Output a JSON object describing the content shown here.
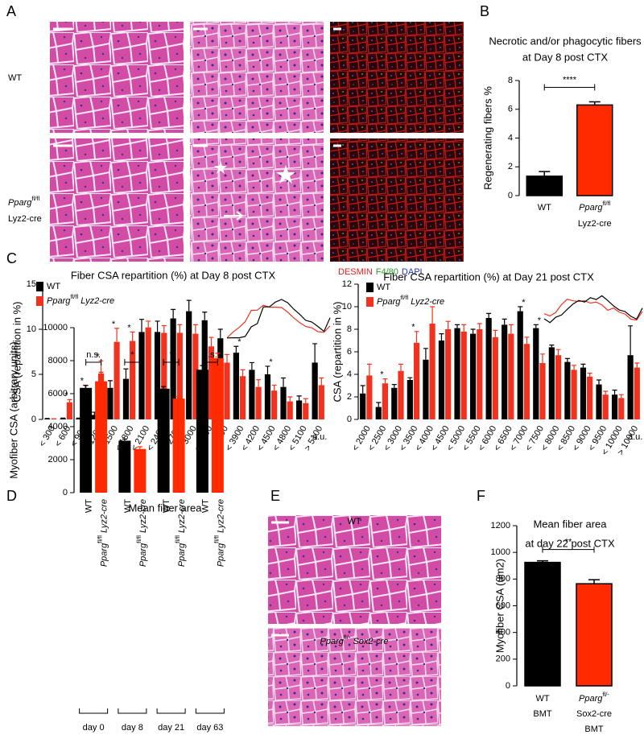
{
  "panel_labels": [
    "A",
    "B",
    "C",
    "D",
    "E",
    "F"
  ],
  "images": {
    "A": {
      "row_labels": [
        [
          "WT"
        ],
        [
          {
            "gene": "Pparg",
            "sup": "fl/fl"
          },
          "Lyz2-cre"
        ]
      ],
      "stain_legend": [
        {
          "text": "DESMIN",
          "color": "#e0201c"
        },
        {
          "text": "F4/80",
          "color": "#2a9a2a"
        },
        {
          "text": "DAPI",
          "color": "#2030c0"
        }
      ]
    },
    "E": {
      "labels": [
        "WT",
        {
          "gene": "Pparg",
          "sup": "fl/-",
          "rest": "Sox2-cre"
        }
      ]
    }
  },
  "chart_data": [
    {
      "type": "bar",
      "title": [
        "Necrotic and/or phagocytic fibers",
        "at Day 8 post CTX"
      ],
      "ylabel": "Regenerating fibers %",
      "categories": [
        [
          "WT"
        ],
        [
          {
            "gene": "Pparg",
            "sup": "fl/fl"
          },
          "Lyz2-cre"
        ]
      ],
      "values": [
        1.35,
        6.3
      ],
      "errors": [
        0.32,
        0.22
      ],
      "colors": [
        "#000000",
        "#ff2a00"
      ],
      "ylim": [
        0,
        8
      ],
      "yticks": [
        0,
        2,
        4,
        6,
        8
      ],
      "significance": "****"
    },
    {
      "type": "grouped_bar",
      "title": [
        "Fiber CSA repartition (%) at Day 8 post CTX"
      ],
      "ylabel": "CSA (repartition in %)",
      "categories": [
        "< 300",
        "< 600",
        "< 900",
        "< 1200",
        "< 1500",
        "< 1800",
        "< 2100",
        "< 2400",
        "< 2700",
        "< 3000",
        "< 3300",
        "< 3600",
        "< 3900",
        "< 4200",
        "< 4500",
        "< 4800",
        "< 5100",
        "> 5100"
      ],
      "x_unit": "a.u.",
      "legend": "upper left",
      "series": [
        {
          "name": "WT",
          "color": "#000000",
          "values": [
            0.05,
            0.1,
            0.1,
            0.5,
            3.5,
            4.5,
            9.7,
            9.7,
            11.2,
            12,
            11,
            9,
            7.4,
            5.5,
            5,
            3.6,
            2.1,
            6.3
          ],
          "errors": [
            0.05,
            0.05,
            0.05,
            0.3,
            0.8,
            1.1,
            1.4,
            1.2,
            1.0,
            1.2,
            0.9,
            1.0,
            0.7,
            0.8,
            0.9,
            1.0,
            0.5,
            2.1
          ]
        },
        {
          "name": {
            "gene": "Pparg",
            "sup": "fl/fl",
            "rest": "Lyz2-cre"
          },
          "color": "#f0321e",
          "values": [
            0.05,
            1.9,
            3.3,
            5.1,
            8.6,
            8.7,
            10.2,
            9.6,
            9.6,
            9.5,
            8.1,
            6.3,
            4.8,
            3.6,
            3.2,
            2,
            1.8,
            3.8
          ],
          "errors": [
            0.02,
            0.3,
            0.5,
            1.4,
            1.5,
            1.0,
            0.7,
            0.8,
            0.9,
            1.0,
            1.0,
            0.9,
            0.7,
            0.8,
            0.6,
            0.5,
            0.5,
            0.8
          ]
        }
      ],
      "stars": [
        null,
        "*",
        "*",
        "*",
        "*",
        "*",
        null,
        null,
        null,
        null,
        null,
        null,
        "*",
        null,
        "*",
        null,
        null,
        null
      ],
      "ylim": [
        0,
        15
      ],
      "yticks": [
        0,
        5,
        10,
        15
      ]
    },
    {
      "type": "grouped_bar",
      "title": [
        "Fiber CSA repartition (%) at Day 21 post CTX"
      ],
      "ylabel": "CSA (repartition in %)",
      "categories": [
        "< 2000",
        "< 2500",
        "< 3000",
        "< 3500",
        "< 4000",
        "< 4500",
        "< 5000",
        "< 5500",
        "< 6000",
        "< 6500",
        "< 7000",
        "< 7500",
        "< 8000",
        "< 8500",
        "< 9000",
        "< 9500",
        "< 10000",
        "> 10000"
      ],
      "x_unit": "a.u.",
      "legend": "upper left",
      "series": [
        {
          "name": "WT",
          "color": "#000000",
          "values": [
            2.3,
            1.1,
            2.8,
            3.5,
            5.3,
            7.0,
            8.1,
            7.6,
            9.0,
            8.4,
            9.6,
            8.1,
            6.4,
            5.1,
            4.6,
            3.1,
            2.2,
            5.7
          ],
          "errors": [
            0.7,
            0.4,
            0.3,
            0.2,
            1.0,
            0.6,
            0.3,
            0.4,
            0.4,
            0.5,
            0.4,
            0.3,
            0.2,
            0.3,
            0.3,
            0.4,
            0.4,
            2.6
          ]
        },
        {
          "name": {
            "gene": "Pparg",
            "sup": "fl/fl",
            "rest": "Lyz2-cre"
          },
          "color": "#f0321e",
          "values": [
            3.9,
            3.2,
            4.3,
            6.8,
            8.5,
            8.0,
            7.8,
            8.0,
            7.3,
            7.6,
            6.7,
            5.0,
            5.7,
            4.4,
            3.8,
            2.2,
            1.9,
            4.6
          ],
          "errors": [
            1.0,
            0.4,
            0.6,
            1.0,
            1.5,
            0.7,
            0.6,
            0.5,
            0.6,
            0.8,
            0.6,
            0.8,
            0.5,
            0.4,
            0.3,
            0.3,
            0.3,
            0.4
          ]
        }
      ],
      "stars": [
        null,
        "*",
        null,
        "*",
        null,
        null,
        null,
        null,
        null,
        null,
        "*",
        "*",
        null,
        null,
        null,
        null,
        null,
        null
      ],
      "ylim": [
        0,
        12
      ],
      "yticks": [
        0,
        2,
        4,
        6,
        8,
        10,
        12
      ]
    },
    {
      "type": "grouped_bar",
      "title": [
        "Mean fiber area"
      ],
      "ylabel": "Myofiber CSA (arbitrary units)",
      "groups": [
        "day 0",
        "day 8",
        "day 21",
        "day 63"
      ],
      "group_color": "#e8301c",
      "series": [
        {
          "name": "WT",
          "color": "#000000",
          "values": [
            6350,
            3150,
            6300,
            7450
          ],
          "errors": [
            150,
            100,
            130,
            250
          ]
        },
        {
          "name": {
            "gene": "Pparg",
            "sup": "fl/fl",
            "rest": "Lyz2-cre"
          },
          "color": "#ff2a00",
          "values": [
            6750,
            2650,
            5700,
            8150
          ],
          "errors": [
            550,
            130,
            120,
            300
          ]
        }
      ],
      "significance": [
        "n.s.",
        "*",
        "*",
        "n.s."
      ],
      "ylim": [
        0,
        10000
      ],
      "yticks": [
        0,
        2000,
        4000,
        6000,
        8000,
        10000
      ]
    },
    {
      "type": "bar",
      "title": [
        "Mean fiber area",
        "at day 22 post CTX"
      ],
      "ylabel": "Myofiber CSA (um2)",
      "categories": [
        [
          "WT",
          "BMT"
        ],
        [
          {
            "gene": "Pparg",
            "sup": "fl/-"
          },
          "Sox2-cre",
          "BMT"
        ]
      ],
      "values": [
        925,
        765
      ],
      "errors": [
        12,
        30
      ],
      "colors": [
        "#000000",
        "#ff2a00"
      ],
      "ylim": [
        0,
        1200
      ],
      "yticks": [
        0,
        200,
        400,
        600,
        800,
        1000,
        1200
      ],
      "significance": "**"
    }
  ]
}
